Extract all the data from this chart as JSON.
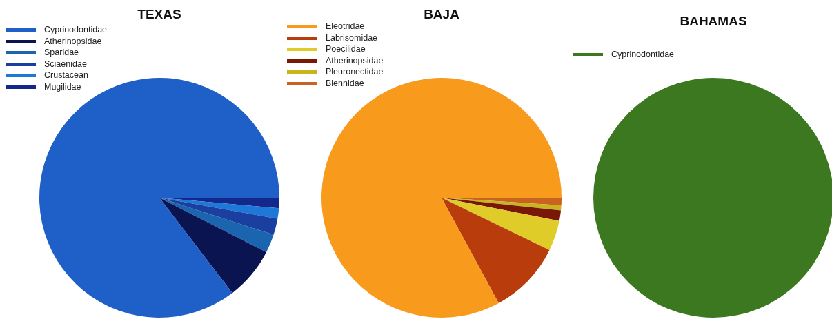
{
  "chart_data": [
    {
      "type": "pie",
      "title": "TEXAS",
      "categories": [
        "Cyprinodontidae",
        "Atherinopsidae",
        "Sparidae",
        "Sciaenidae",
        "Crustacean",
        "Mugilidae"
      ],
      "values": [
        85.4,
        7.1,
        2.5,
        2.2,
        1.4,
        1.4
      ],
      "colors": [
        "#1f5fc8",
        "#0a1450",
        "#1a64b0",
        "#1a3fa0",
        "#1e78d8",
        "#14288c"
      ],
      "legend": "top left"
    },
    {
      "type": "pie",
      "title": "BAJA",
      "categories": [
        "Eleotridae",
        "Labrisomidae",
        "Poecilidae",
        "Atherinopsidae",
        "Pleuronectidae",
        "Blennidae"
      ],
      "values": [
        82.9,
        9.9,
        4.1,
        1.4,
        0.7,
        1.0
      ],
      "colors": [
        "#f89a1c",
        "#b83c0c",
        "#e0cc28",
        "#7a1808",
        "#c8b41c",
        "#c86420"
      ],
      "legend": "top left"
    },
    {
      "type": "pie",
      "title": "BAHAMAS",
      "categories": [
        "Cyprinodontidae"
      ],
      "values": [
        100
      ],
      "colors": [
        "#3c7820"
      ],
      "legend": "top left"
    }
  ]
}
